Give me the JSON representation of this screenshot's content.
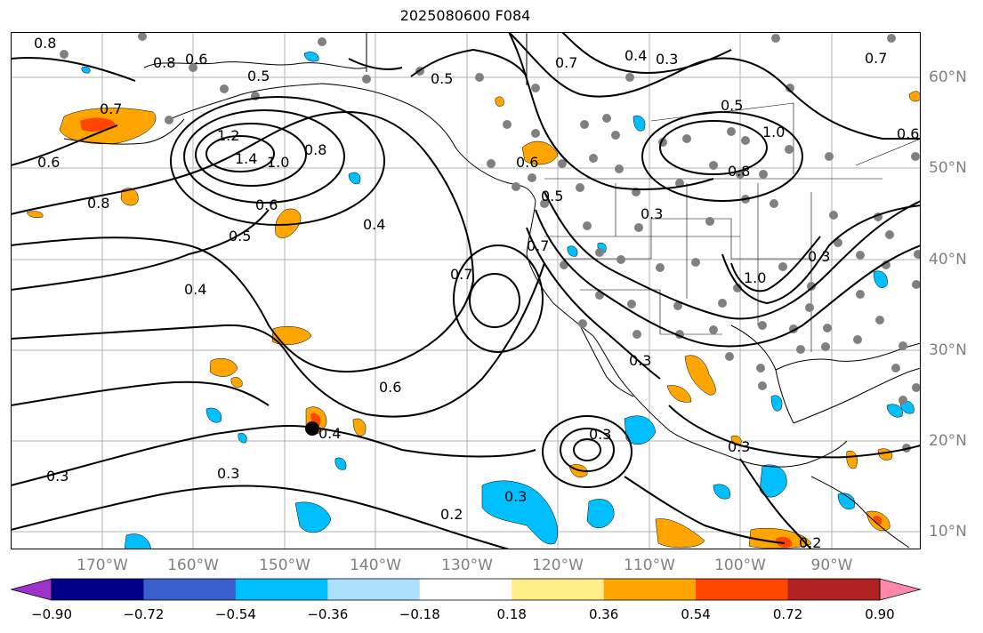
{
  "title": "2025080600 F084",
  "lon_labels": [
    "170°W",
    "160°W",
    "150°W",
    "140°W",
    "130°W",
    "120°W",
    "110°W",
    "100°W",
    "90°W"
  ],
  "lat_labels": [
    "60°N",
    "50°N",
    "40°N",
    "30°N",
    "20°N",
    "10°N"
  ],
  "contour_labels": [
    "0.8",
    "0.8",
    "0.6",
    "0.5",
    "0.5",
    "0.7",
    "0.4",
    "0.3",
    "0.7",
    "0.7",
    "0.6",
    "1.2",
    "1.4",
    "1.0",
    "0.8",
    "0.8",
    "0.6",
    "0.5",
    "0.4",
    "0.4",
    "0.7",
    "0.5",
    "1.0",
    "0.8",
    "0.3",
    "0.6",
    "0.3",
    "1.0",
    "0.6",
    "0.3",
    "0.3",
    "0.4",
    "0.3",
    "0.3",
    "0.3",
    "0.2",
    "0.3",
    "0.2",
    "0.5",
    "0.7",
    "0.6"
  ],
  "colorbar": {
    "ticks": [
      "−0.90",
      "−0.72",
      "−0.54",
      "−0.36",
      "−0.18",
      "0.18",
      "0.36",
      "0.54",
      "0.72",
      "0.90"
    ],
    "colors": [
      "#9933cc",
      "#000088",
      "#3a5fcd",
      "#00bfff",
      "#addfff",
      "#ffffff",
      "#ffee88",
      "#ffa500",
      "#ff4500",
      "#b22222",
      "#ff88aa"
    ]
  },
  "colors": {
    "contour": "#000000",
    "land": "#ffffff",
    "grid": "#b0b0b0",
    "station_dots": "#808080",
    "positive_fill": "#ffa500",
    "negative_fill": "#00bfff",
    "storm_marker": "#000000"
  }
}
